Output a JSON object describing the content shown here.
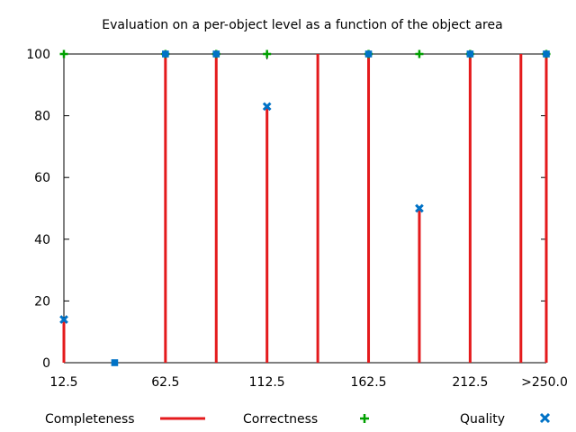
{
  "chart_data": {
    "type": "bar",
    "title": "Evaluation on a per-object level as a function of the object area",
    "xlabel": "",
    "ylabel": "",
    "x_ticks": [
      "12.5",
      "62.5",
      "112.5",
      "162.5",
      "212.5",
      ">250.0"
    ],
    "y_ticks": [
      "0",
      "20",
      "40",
      "60",
      "80",
      "100"
    ],
    "ylim": [
      0,
      100
    ],
    "x": [
      12.5,
      37.5,
      62.5,
      87.5,
      112.5,
      137.5,
      162.5,
      187.5,
      212.5,
      237.5,
      250
    ],
    "xlim": [
      12.5,
      250
    ],
    "series": [
      {
        "name": "Completeness",
        "style": "impulses",
        "color": "#e41a1c",
        "values": [
          14,
          0,
          100,
          100,
          83,
          100,
          100,
          50,
          100,
          100,
          100
        ]
      },
      {
        "name": "Correctness",
        "style": "points-plus",
        "color": "#00a000",
        "values": [
          100,
          null,
          100,
          100,
          100,
          null,
          100,
          100,
          100,
          null,
          100
        ]
      },
      {
        "name": "Quality",
        "style": "points-x",
        "color": "#0072c6",
        "values": [
          14,
          0,
          100,
          100,
          83,
          null,
          100,
          50,
          100,
          null,
          100
        ]
      }
    ],
    "legend": "bottom",
    "grid": false
  }
}
